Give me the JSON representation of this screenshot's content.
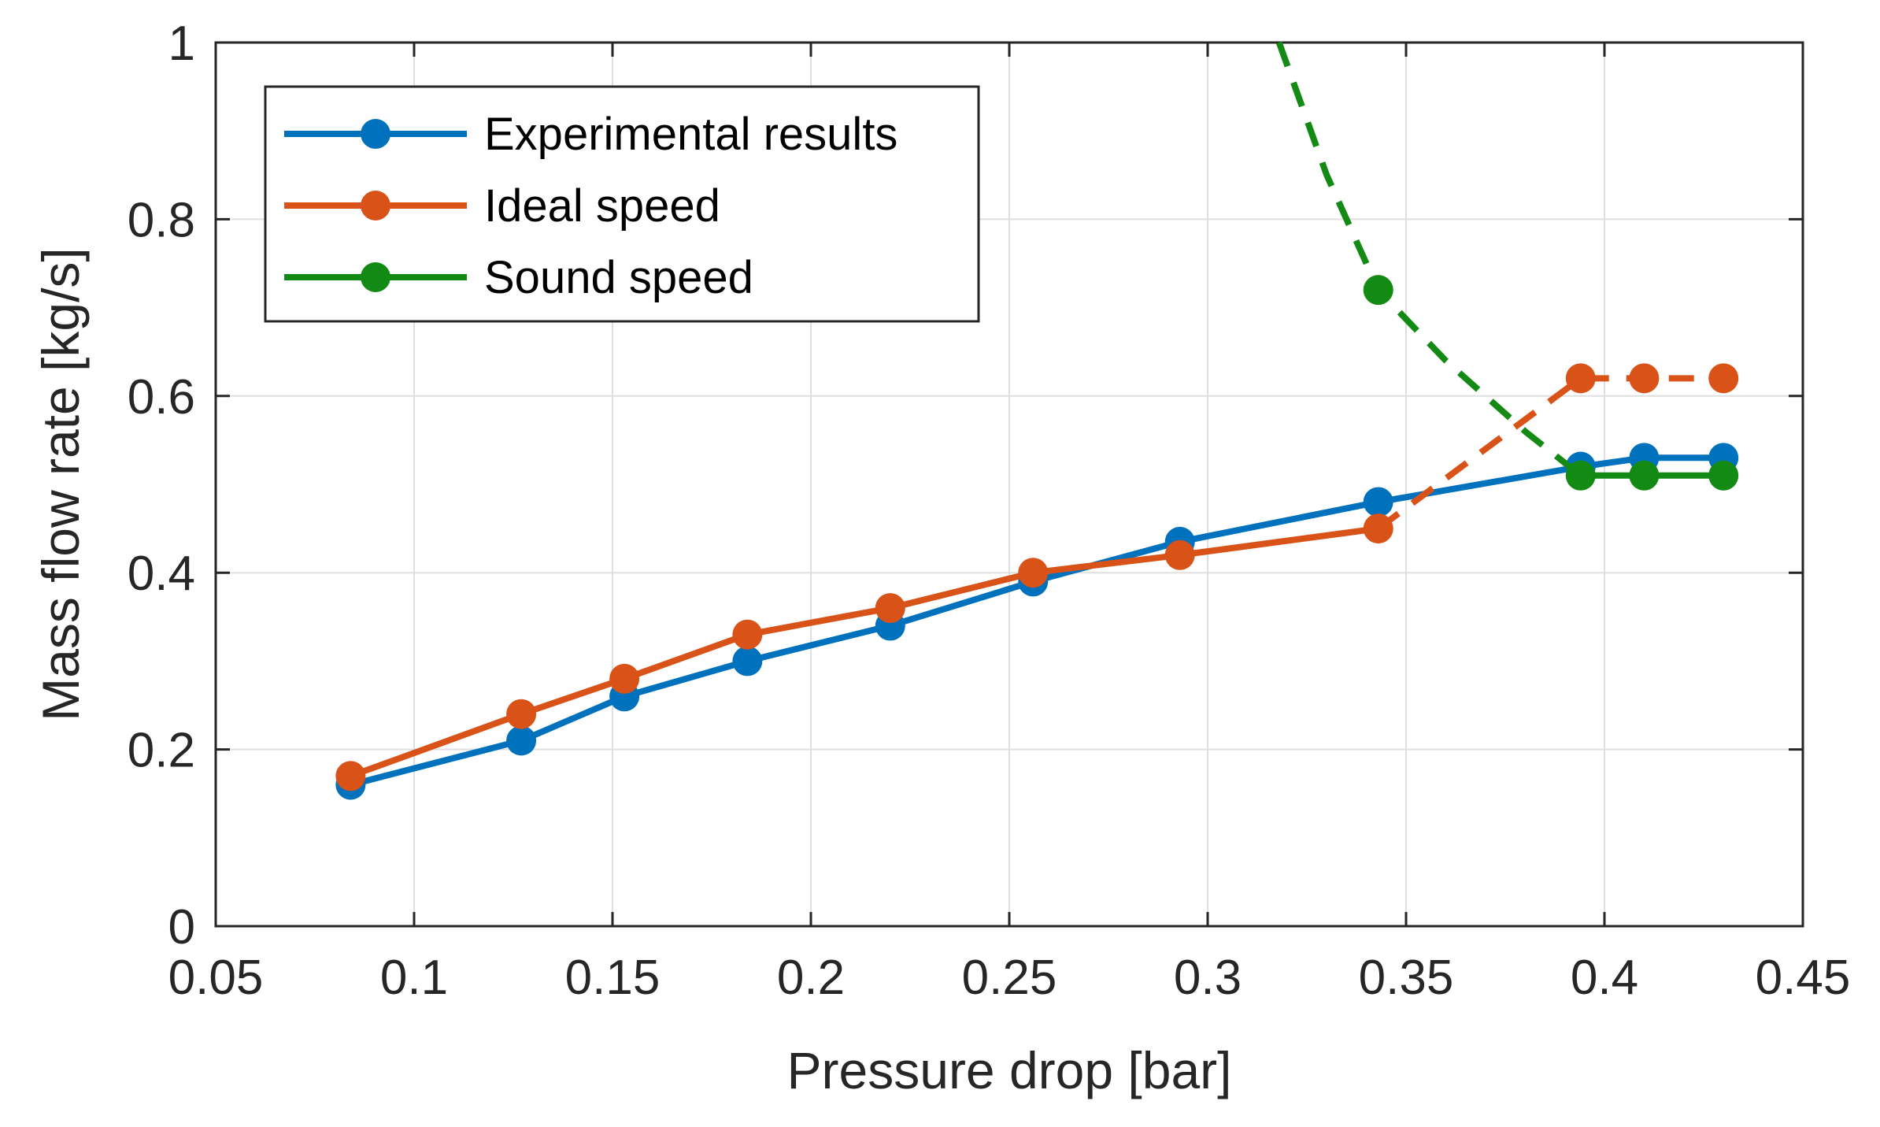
{
  "chart_data": {
    "type": "line",
    "title": "",
    "xlabel": "Pressure drop [bar]",
    "ylabel": "Mass flow rate [kg/s]",
    "xlim": [
      0.05,
      0.45
    ],
    "ylim": [
      0,
      1
    ],
    "grid": true,
    "legend_position": "top-left",
    "x_ticks": [
      0.05,
      0.1,
      0.15,
      0.2,
      0.25,
      0.3,
      0.35,
      0.4,
      0.45
    ],
    "x_tick_labels": [
      "0.05",
      "0.1",
      "0.15",
      "0.2",
      "0.25",
      "0.3",
      "0.35",
      "0.4",
      "0.45"
    ],
    "y_ticks": [
      0,
      0.2,
      0.4,
      0.6,
      0.8,
      1
    ],
    "y_tick_labels": [
      "0",
      "0.2",
      "0.4",
      "0.6",
      "0.8",
      "1"
    ],
    "series": [
      {
        "name": "Experimental results",
        "color": "#0072BD",
        "x": [
          0.084,
          0.127,
          0.153,
          0.184,
          0.22,
          0.256,
          0.293,
          0.343,
          0.394,
          0.41,
          0.43
        ],
        "values": [
          0.16,
          0.21,
          0.26,
          0.3,
          0.34,
          0.39,
          0.435,
          0.48,
          0.52,
          0.53,
          0.53
        ],
        "markers": [
          0.084,
          0.127,
          0.153,
          0.184,
          0.22,
          0.256,
          0.293,
          0.343,
          0.394,
          0.41,
          0.43
        ],
        "segments": [
          {
            "style": "solid",
            "from": 0.084,
            "to": 0.43
          }
        ]
      },
      {
        "name": "Ideal speed",
        "color": "#D95319",
        "x": [
          0.084,
          0.127,
          0.153,
          0.184,
          0.22,
          0.256,
          0.293,
          0.343,
          0.394,
          0.41,
          0.43
        ],
        "values": [
          0.17,
          0.24,
          0.28,
          0.33,
          0.36,
          0.4,
          0.42,
          0.45,
          0.62,
          0.62,
          0.62
        ],
        "markers": [
          0.084,
          0.127,
          0.153,
          0.184,
          0.22,
          0.256,
          0.293,
          0.343,
          0.394,
          0.41,
          0.43
        ],
        "segments": [
          {
            "style": "solid",
            "from": 0.084,
            "to": 0.343
          },
          {
            "style": "dashed",
            "from": 0.343,
            "to": 0.43
          }
        ]
      },
      {
        "name": "Sound speed",
        "color": "#138A13",
        "x": [
          0.318,
          0.33,
          0.343,
          0.36,
          0.38,
          0.394,
          0.41,
          0.43
        ],
        "values": [
          1.0,
          0.85,
          0.72,
          0.64,
          0.56,
          0.51,
          0.51,
          0.51
        ],
        "markers": [
          0.343,
          0.394,
          0.41,
          0.43
        ],
        "segments": [
          {
            "style": "dashed",
            "from": 0.318,
            "to": 0.394
          },
          {
            "style": "solid",
            "from": 0.394,
            "to": 0.43
          }
        ]
      }
    ]
  }
}
